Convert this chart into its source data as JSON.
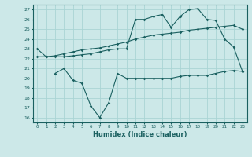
{
  "bg_color": "#cce8e8",
  "grid_color": "#aad4d4",
  "line_color": "#1a6060",
  "xlabel": "Humidex (Indice chaleur)",
  "ylim": [
    15.5,
    27.5
  ],
  "xlim": [
    -0.5,
    23.5
  ],
  "yticks": [
    16,
    17,
    18,
    19,
    20,
    21,
    22,
    23,
    24,
    25,
    26,
    27
  ],
  "xticks": [
    0,
    1,
    2,
    3,
    4,
    5,
    6,
    7,
    8,
    9,
    10,
    11,
    12,
    13,
    14,
    15,
    16,
    17,
    18,
    19,
    20,
    21,
    22,
    23
  ],
  "line1_x": [
    0,
    1,
    2,
    3,
    4,
    5,
    6,
    7,
    8,
    9,
    10,
    11,
    12,
    13,
    14,
    15,
    16,
    17,
    18,
    19,
    20,
    21,
    22,
    23
  ],
  "line1_y": [
    23.0,
    22.2,
    22.2,
    22.2,
    22.3,
    22.4,
    22.5,
    22.7,
    22.9,
    23.0,
    23.0,
    26.0,
    26.0,
    26.3,
    26.5,
    25.2,
    26.3,
    27.0,
    27.1,
    26.0,
    25.9,
    24.0,
    23.2,
    20.7
  ],
  "line2_x": [
    0,
    1,
    2,
    3,
    4,
    5,
    6,
    7,
    8,
    9,
    10,
    11,
    12,
    13,
    14,
    15,
    16,
    17,
    18,
    19,
    20,
    21,
    22,
    23
  ],
  "line2_y": [
    22.2,
    22.2,
    22.3,
    22.5,
    22.7,
    22.9,
    23.0,
    23.1,
    23.3,
    23.5,
    23.7,
    24.0,
    24.2,
    24.4,
    24.5,
    24.6,
    24.7,
    24.9,
    25.0,
    25.1,
    25.2,
    25.3,
    25.4,
    25.0
  ],
  "line3_x": [
    2,
    3,
    4,
    5,
    6,
    7,
    8,
    9,
    10,
    11,
    12,
    13,
    14,
    15,
    16,
    17,
    18,
    19,
    20,
    21,
    22,
    23
  ],
  "line3_y": [
    20.5,
    21.0,
    19.8,
    19.5,
    17.2,
    16.0,
    17.5,
    20.5,
    20.0,
    20.0,
    20.0,
    20.0,
    20.0,
    20.0,
    20.2,
    20.3,
    20.3,
    20.3,
    20.5,
    20.7,
    20.8,
    20.7
  ]
}
